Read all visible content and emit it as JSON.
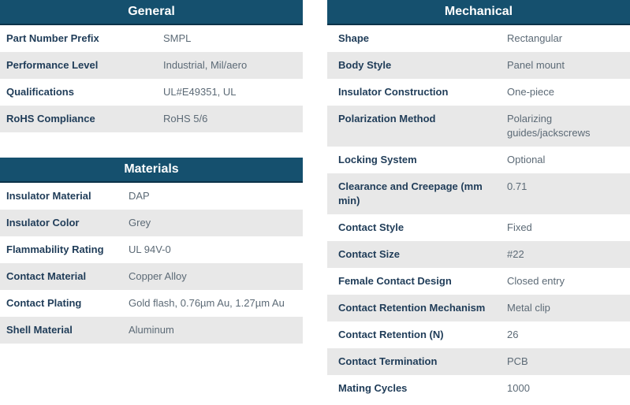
{
  "theme": {
    "header_bg": "#15506e",
    "header_border": "#0b3249",
    "header_text": "#ffffff",
    "label_color": "#1f3c58",
    "value_color": "#5c6a76",
    "row_bg": "#ffffff",
    "row_alt_bg": "#e8e8e8"
  },
  "tables": {
    "general": {
      "title": "General",
      "rows": [
        {
          "label": "Part Number Prefix",
          "value": "SMPL"
        },
        {
          "label": "Performance Level",
          "value": "Industrial, Mil/aero"
        },
        {
          "label": "Qualifications",
          "value": "UL#E49351, UL"
        },
        {
          "label": "RoHS Compliance",
          "value": "RoHS 5/6"
        }
      ]
    },
    "materials": {
      "title": "Materials",
      "rows": [
        {
          "label": "Insulator Material",
          "value": "DAP"
        },
        {
          "label": "Insulator Color",
          "value": "Grey"
        },
        {
          "label": "Flammability Rating",
          "value": "UL 94V-0"
        },
        {
          "label": "Contact Material",
          "value": "Copper Alloy"
        },
        {
          "label": "Contact Plating",
          "value": "Gold flash, 0.76µm Au, 1.27µm Au"
        },
        {
          "label": "Shell Material",
          "value": "Aluminum"
        }
      ]
    },
    "mechanical": {
      "title": "Mechanical",
      "rows": [
        {
          "label": "Shape",
          "value": "Rectangular"
        },
        {
          "label": "Body Style",
          "value": "Panel mount"
        },
        {
          "label": "Insulator Construction",
          "value": "One-piece"
        },
        {
          "label": "Polarization Method",
          "value": "Polarizing guides/jackscrews"
        },
        {
          "label": "Locking System",
          "value": "Optional"
        },
        {
          "label": "Clearance and Creepage (mm min)",
          "value": "0.71"
        },
        {
          "label": "Contact Style",
          "value": "Fixed"
        },
        {
          "label": "Contact Size",
          "value": "#22"
        },
        {
          "label": "Female Contact Design",
          "value": "Closed entry"
        },
        {
          "label": "Contact Retention Mechanism",
          "value": "Metal clip"
        },
        {
          "label": "Contact Retention (N)",
          "value": "26"
        },
        {
          "label": "Contact Termination",
          "value": "PCB"
        },
        {
          "label": "Mating Cycles",
          "value": "1000"
        }
      ]
    }
  }
}
